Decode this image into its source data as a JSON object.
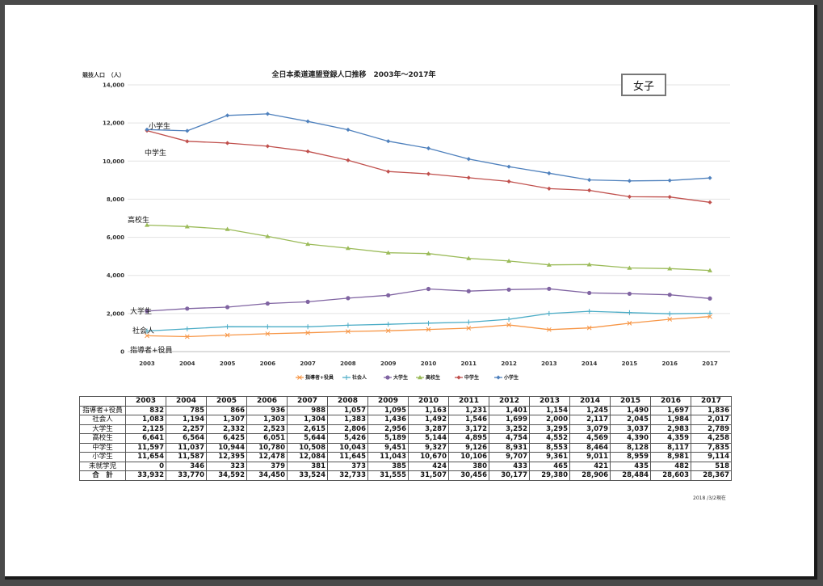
{
  "chart_data": {
    "type": "line",
    "title": "全日本柔道連盟登録人口推移　2003年～2017年",
    "ylabel": "競技人口　（人）",
    "xlabel": "",
    "ylim": [
      0,
      14000
    ],
    "yticks": [
      "14,000",
      "12,000",
      "10,000",
      "8,000",
      "6,000",
      "4,000",
      "2,000",
      "0"
    ],
    "ytick_values": [
      14000,
      12000,
      10000,
      8000,
      6000,
      4000,
      2000,
      0
    ],
    "grid": true,
    "legend_position": "bottom",
    "categories": [
      "2003",
      "2004",
      "2005",
      "2006",
      "2007",
      "2008",
      "2009",
      "2010",
      "2011",
      "2012",
      "2013",
      "2014",
      "2015",
      "2016",
      "2017"
    ],
    "series": [
      {
        "name": "指導者+役員",
        "color": "#f79646",
        "marker": "x",
        "values": [
          832,
          785,
          866,
          936,
          988,
          1057,
          1095,
          1163,
          1231,
          1401,
          1154,
          1245,
          1490,
          1697,
          1836
        ]
      },
      {
        "name": "社会人",
        "color": "#4bacc6",
        "marker": "plus",
        "values": [
          1083,
          1194,
          1307,
          1303,
          1304,
          1383,
          1436,
          1492,
          1546,
          1699,
          2000,
          2117,
          2045,
          1984,
          2017
        ]
      },
      {
        "name": "大学生",
        "color": "#8064a2",
        "marker": "circle",
        "values": [
          2125,
          2257,
          2332,
          2523,
          2615,
          2806,
          2956,
          3287,
          3172,
          3252,
          3295,
          3079,
          3037,
          2983,
          2789
        ]
      },
      {
        "name": "高校生",
        "color": "#9bbb59",
        "marker": "triangle",
        "values": [
          6641,
          6564,
          6425,
          6051,
          5644,
          5426,
          5189,
          5144,
          4895,
          4754,
          4552,
          4569,
          4390,
          4359,
          4258
        ]
      },
      {
        "name": "中学生",
        "color": "#c0504d",
        "marker": "diamond",
        "values": [
          11597,
          11037,
          10944,
          10780,
          10508,
          10043,
          9451,
          9327,
          9126,
          8931,
          8553,
          8464,
          8128,
          8117,
          7835
        ]
      },
      {
        "name": "小学生",
        "color": "#4f81bd",
        "marker": "diamond",
        "values": [
          11654,
          11587,
          12395,
          12478,
          12084,
          11645,
          11043,
          10670,
          10106,
          9707,
          9361,
          9011,
          8959,
          8981,
          9114
        ]
      }
    ],
    "series_labels": {
      "小学生": "小学生",
      "中学生": "中学生",
      "高校生": "高校生",
      "大学生": "大学生",
      "社会人": "社会人",
      "指導者+役員": "指導者+役員"
    },
    "badge": "女子"
  },
  "table": {
    "headers": [
      "",
      "2003",
      "2004",
      "2005",
      "2006",
      "2007",
      "2008",
      "2009",
      "2010",
      "2011",
      "2012",
      "2013",
      "2014",
      "2015",
      "2016",
      "2017"
    ],
    "rows": [
      {
        "label": "指導者+役員",
        "values": [
          "832",
          "785",
          "866",
          "936",
          "988",
          "1,057",
          "1,095",
          "1,163",
          "1,231",
          "1,401",
          "1,154",
          "1,245",
          "1,490",
          "1,697",
          "1,836"
        ]
      },
      {
        "label": "社会人",
        "values": [
          "1,083",
          "1,194",
          "1,307",
          "1,303",
          "1,304",
          "1,383",
          "1,436",
          "1,492",
          "1,546",
          "1,699",
          "2,000",
          "2,117",
          "2,045",
          "1,984",
          "2,017"
        ]
      },
      {
        "label": "大学生",
        "values": [
          "2,125",
          "2,257",
          "2,332",
          "2,523",
          "2,615",
          "2,806",
          "2,956",
          "3,287",
          "3,172",
          "3,252",
          "3,295",
          "3,079",
          "3,037",
          "2,983",
          "2,789"
        ]
      },
      {
        "label": "高校生",
        "values": [
          "6,641",
          "6,564",
          "6,425",
          "6,051",
          "5,644",
          "5,426",
          "5,189",
          "5,144",
          "4,895",
          "4,754",
          "4,552",
          "4,569",
          "4,390",
          "4,359",
          "4,258"
        ]
      },
      {
        "label": "中学生",
        "values": [
          "11,597",
          "11,037",
          "10,944",
          "10,780",
          "10,508",
          "10,043",
          "9,451",
          "9,327",
          "9,126",
          "8,931",
          "8,553",
          "8,464",
          "8,128",
          "8,117",
          "7,835"
        ]
      },
      {
        "label": "小学生",
        "values": [
          "11,654",
          "11,587",
          "12,395",
          "12,478",
          "12,084",
          "11,645",
          "11,043",
          "10,670",
          "10,106",
          "9,707",
          "9,361",
          "9,011",
          "8,959",
          "8,981",
          "9,114"
        ]
      },
      {
        "label": "未就学児",
        "values": [
          "0",
          "346",
          "323",
          "379",
          "381",
          "373",
          "385",
          "424",
          "380",
          "433",
          "465",
          "421",
          "435",
          "482",
          "518"
        ]
      },
      {
        "label": "合　計",
        "values": [
          "33,932",
          "33,770",
          "34,592",
          "34,450",
          "33,524",
          "32,733",
          "31,555",
          "31,507",
          "30,456",
          "30,177",
          "29,380",
          "28,906",
          "28,484",
          "28,603",
          "28,367"
        ],
        "total": true
      }
    ],
    "footnote": "2018 /3/2現在"
  }
}
